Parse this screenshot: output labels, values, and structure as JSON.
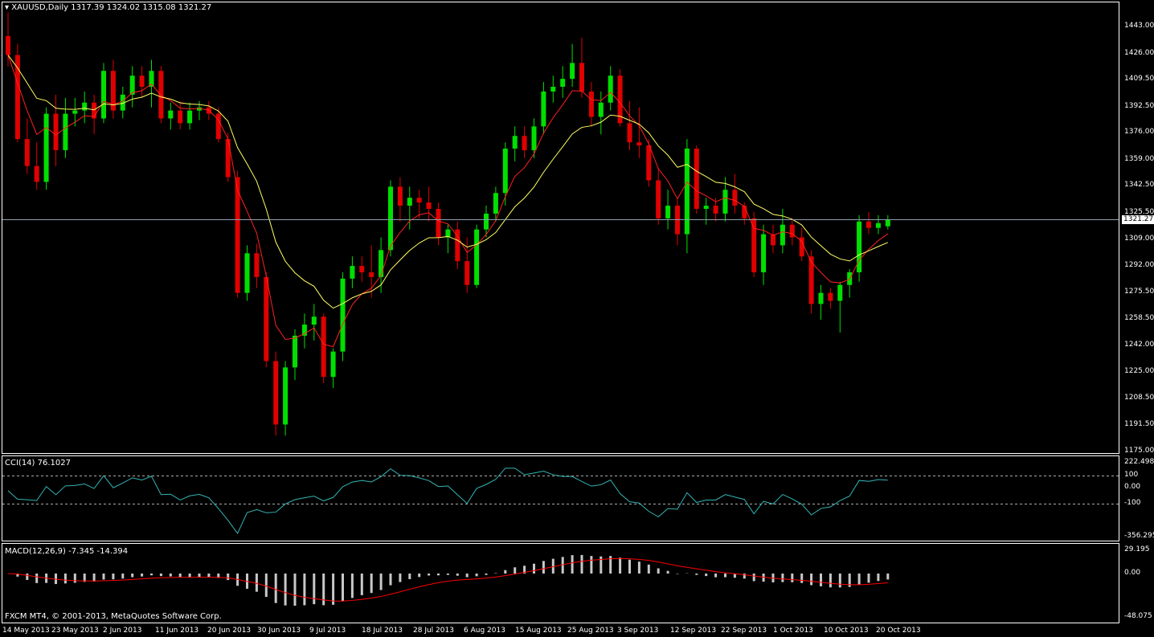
{
  "header": {
    "symbol_line": "XAUUSD,Daily  1317.39 1324.02 1315.08 1321.27",
    "current_price": "1321.27"
  },
  "price_axis": [
    "1443.00",
    "1426.00",
    "1409.50",
    "1392.50",
    "1376.00",
    "1359.00",
    "1342.50",
    "1325.50",
    "1309.00",
    "1292.00",
    "1275.50",
    "1258.50",
    "1242.00",
    "1225.00",
    "1208.50",
    "1191.50",
    "1175.00"
  ],
  "cci": {
    "label": "CCI(14) 76.1027",
    "axis": [
      "222.4989",
      "100",
      "0.00",
      "-100",
      "-356.2959"
    ]
  },
  "macd": {
    "label": "MACD(12,26,9) -7.345 -14.394",
    "axis": [
      "29.195",
      "0.00",
      "-48.075"
    ]
  },
  "copyright": "FXCM MT4, © 2001-2013, MetaQuotes Software Corp.",
  "date_axis": [
    "14 May 2013",
    "23 May 2013",
    "2 Jun 2013",
    "11 Jun 2013",
    "20 Jun 2013",
    "30 Jun 2013",
    "9 Jul 2013",
    "18 Jul 2013",
    "28 Jul 2013",
    "6 Aug 2013",
    "15 Aug 2013",
    "25 Aug 2013",
    "3 Sep 2013",
    "12 Sep 2013",
    "22 Sep 2013",
    "1 Oct 2013",
    "10 Oct 2013",
    "20 Oct 2013"
  ],
  "colors": {
    "bull": "#00e000",
    "bear": "#e00000",
    "ma_fast": "#ff2020",
    "ma_slow": "#ffff60",
    "cci": "#33b5b5",
    "macd_hist": "#c8c8c8",
    "macd_signal": "#ff0000",
    "grid": "#ffffff"
  },
  "chart_data": {
    "type": "candlestick",
    "symbol": "XAUUSD",
    "timeframe": "Daily",
    "ohlc": [
      [
        1437,
        1452,
        1418,
        1425
      ],
      [
        1425,
        1432,
        1370,
        1372
      ],
      [
        1372,
        1385,
        1350,
        1355
      ],
      [
        1355,
        1370,
        1340,
        1345
      ],
      [
        1345,
        1392,
        1340,
        1388
      ],
      [
        1388,
        1400,
        1355,
        1365
      ],
      [
        1365,
        1398,
        1360,
        1388
      ],
      [
        1388,
        1398,
        1380,
        1390
      ],
      [
        1390,
        1402,
        1382,
        1395
      ],
      [
        1395,
        1400,
        1375,
        1385
      ],
      [
        1385,
        1420,
        1382,
        1415
      ],
      [
        1415,
        1422,
        1385,
        1390
      ],
      [
        1390,
        1405,
        1385,
        1400
      ],
      [
        1400,
        1418,
        1392,
        1412
      ],
      [
        1412,
        1418,
        1398,
        1405
      ],
      [
        1405,
        1422,
        1392,
        1415
      ],
      [
        1415,
        1418,
        1382,
        1385
      ],
      [
        1385,
        1395,
        1378,
        1390
      ],
      [
        1390,
        1396,
        1378,
        1382
      ],
      [
        1382,
        1395,
        1378,
        1390
      ],
      [
        1390,
        1396,
        1384,
        1392
      ],
      [
        1392,
        1396,
        1384,
        1388
      ],
      [
        1388,
        1392,
        1370,
        1372
      ],
      [
        1372,
        1376,
        1345,
        1348
      ],
      [
        1348,
        1352,
        1272,
        1275
      ],
      [
        1275,
        1305,
        1270,
        1300
      ],
      [
        1300,
        1306,
        1278,
        1285
      ],
      [
        1285,
        1288,
        1228,
        1232
      ],
      [
        1232,
        1238,
        1185,
        1192
      ],
      [
        1192,
        1232,
        1185,
        1228
      ],
      [
        1228,
        1252,
        1220,
        1248
      ],
      [
        1248,
        1262,
        1240,
        1255
      ],
      [
        1255,
        1268,
        1245,
        1260
      ],
      [
        1260,
        1262,
        1218,
        1222
      ],
      [
        1222,
        1240,
        1215,
        1238
      ],
      [
        1238,
        1288,
        1232,
        1284
      ],
      [
        1284,
        1298,
        1278,
        1292
      ],
      [
        1292,
        1298,
        1282,
        1288
      ],
      [
        1288,
        1305,
        1272,
        1285
      ],
      [
        1285,
        1310,
        1275,
        1302
      ],
      [
        1302,
        1346,
        1298,
        1342
      ],
      [
        1342,
        1348,
        1320,
        1330
      ],
      [
        1330,
        1342,
        1315,
        1335
      ],
      [
        1335,
        1340,
        1322,
        1332
      ],
      [
        1332,
        1342,
        1320,
        1328
      ],
      [
        1328,
        1332,
        1305,
        1310
      ],
      [
        1310,
        1318,
        1300,
        1315
      ],
      [
        1315,
        1320,
        1290,
        1295
      ],
      [
        1295,
        1310,
        1275,
        1280
      ],
      [
        1280,
        1318,
        1278,
        1315
      ],
      [
        1315,
        1330,
        1310,
        1325
      ],
      [
        1325,
        1342,
        1320,
        1338
      ],
      [
        1338,
        1370,
        1330,
        1366
      ],
      [
        1366,
        1380,
        1358,
        1374
      ],
      [
        1374,
        1380,
        1360,
        1365
      ],
      [
        1365,
        1385,
        1360,
        1380
      ],
      [
        1380,
        1408,
        1375,
        1402
      ],
      [
        1402,
        1412,
        1395,
        1405
      ],
      [
        1405,
        1418,
        1398,
        1410
      ],
      [
        1410,
        1432,
        1405,
        1420
      ],
      [
        1420,
        1436,
        1398,
        1402
      ],
      [
        1402,
        1408,
        1380,
        1386
      ],
      [
        1386,
        1402,
        1375,
        1395
      ],
      [
        1395,
        1418,
        1390,
        1412
      ],
      [
        1412,
        1416,
        1380,
        1382
      ],
      [
        1382,
        1396,
        1365,
        1370
      ],
      [
        1370,
        1392,
        1360,
        1368
      ],
      [
        1368,
        1372,
        1342,
        1346
      ],
      [
        1346,
        1354,
        1318,
        1322
      ],
      [
        1322,
        1340,
        1315,
        1330
      ],
      [
        1330,
        1335,
        1305,
        1312
      ],
      [
        1312,
        1372,
        1300,
        1366
      ],
      [
        1366,
        1368,
        1325,
        1328
      ],
      [
        1328,
        1335,
        1318,
        1330
      ],
      [
        1330,
        1335,
        1320,
        1325
      ],
      [
        1325,
        1348,
        1320,
        1340
      ],
      [
        1340,
        1350,
        1325,
        1330
      ],
      [
        1330,
        1332,
        1318,
        1322
      ],
      [
        1322,
        1326,
        1285,
        1288
      ],
      [
        1288,
        1318,
        1280,
        1312
      ],
      [
        1312,
        1318,
        1300,
        1305
      ],
      [
        1305,
        1328,
        1300,
        1318
      ],
      [
        1318,
        1322,
        1305,
        1310
      ],
      [
        1310,
        1316,
        1295,
        1298
      ],
      [
        1298,
        1302,
        1262,
        1268
      ],
      [
        1268,
        1280,
        1258,
        1275
      ],
      [
        1275,
        1278,
        1265,
        1270
      ],
      [
        1270,
        1282,
        1250,
        1280
      ],
      [
        1280,
        1290,
        1272,
        1288
      ],
      [
        1288,
        1324,
        1282,
        1320
      ],
      [
        1320,
        1326,
        1312,
        1316
      ],
      [
        1316,
        1324,
        1312,
        1319
      ],
      [
        1317,
        1324,
        1315,
        1321
      ]
    ],
    "ylim": [
      1175,
      1443
    ],
    "indicators": [
      "MA fast (red)",
      "MA slow (yellow)",
      "CCI(14)",
      "MACD(12,26,9)"
    ],
    "cci_value": 76.1027,
    "macd_values": [
      -7.345,
      -14.394
    ],
    "current_price": 1321.27
  }
}
